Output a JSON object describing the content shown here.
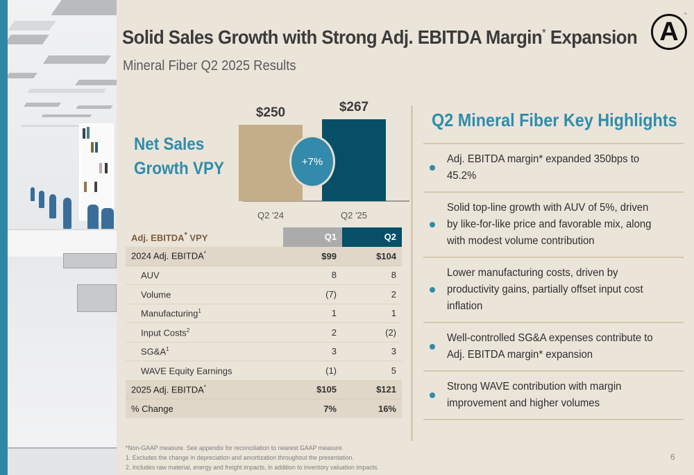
{
  "header": {
    "title": "Solid Sales Growth with Strong Adj. EBITDA Margin",
    "title_mark": "*",
    "title_suffix": " Expansion",
    "subtitle": "Mineral Fiber Q2 2025 Results",
    "logo_letter": "A",
    "logo_tm": "™"
  },
  "net_sales": {
    "label_line1": "Net Sales",
    "label_line2": "Growth VPY",
    "growth_badge": "+7%"
  },
  "chart_data": {
    "type": "bar",
    "title": "Net Sales Growth VPY",
    "categories": [
      "Q2 '24",
      "Q2 '25"
    ],
    "values": [
      250,
      267
    ],
    "value_labels": [
      "$250",
      "$267"
    ],
    "colors": [
      "#c4ae89",
      "#064f67"
    ],
    "annotation": "+7%",
    "xlabel": "",
    "ylabel": "",
    "ylim": [
      0,
      267
    ],
    "grid": false
  },
  "ebitda_table": {
    "header": {
      "label": "Adj. EBITDA",
      "label_mark": "*",
      "label_suffix": " VPY",
      "q1": "Q1",
      "q2": "Q2"
    },
    "start": {
      "label": "2024 Adj. EBITDA",
      "mark": "*",
      "q1": "$99",
      "q2": "$104"
    },
    "rows": [
      {
        "label": "AUV",
        "sup": "",
        "q1": "8",
        "q2": "8"
      },
      {
        "label": "Volume",
        "sup": "",
        "q1": "(7)",
        "q2": "2"
      },
      {
        "label": "Manufacturing",
        "sup": "1",
        "q1": "1",
        "q2": "1"
      },
      {
        "label": "Input Costs",
        "sup": "2",
        "q1": "2",
        "q2": "(2)"
      },
      {
        "label": "SG&A",
        "sup": "1",
        "q1": "3",
        "q2": "3"
      },
      {
        "label": "WAVE Equity Earnings",
        "sup": "",
        "q1": "(1)",
        "q2": "5"
      }
    ],
    "end": {
      "label": "2025 Adj. EBITDA",
      "mark": "*",
      "q1": "$105",
      "q2": "$121"
    },
    "change": {
      "label": "% Change",
      "q1": "7%",
      "q2": "16%"
    }
  },
  "highlights": {
    "title": "Q2 Mineral Fiber Key Highlights",
    "items": [
      {
        "lines": [
          "Adj. EBITDA margin* expanded 350bps to",
          "45.2%"
        ]
      },
      {
        "lines": [
          "Solid top-line growth with AUV of 5%, driven",
          "by like-for-like price and favorable mix, along",
          "with modest volume contribution"
        ]
      },
      {
        "lines": [
          "Lower manufacturing costs, driven by",
          "productivity gains, partially offset input cost",
          "inflation"
        ]
      },
      {
        "lines": [
          "Well-controlled SG&A expenses contribute to",
          "Adj. EBITDA margin* expansion"
        ]
      },
      {
        "lines": [
          "Strong WAVE contribution with margin",
          "improvement and higher volumes"
        ]
      }
    ]
  },
  "footnotes": [
    "*Non-GAAP measure. See appendix for reconciliation to nearest GAAP measure.",
    "1. Excludes the change in depreciation and amortization throughout the presentation.",
    "2. Includes raw material, energy and freight impacts, in addition to inventory valuation impacts."
  ],
  "page_number": "6"
}
